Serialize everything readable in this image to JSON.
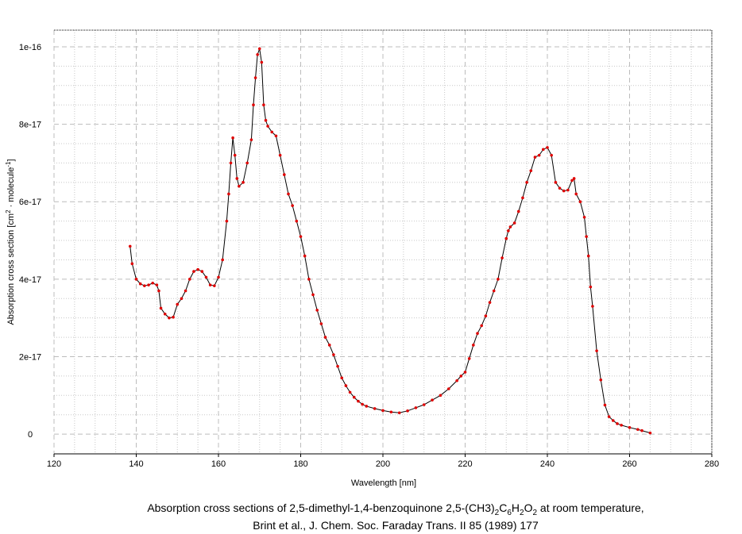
{
  "chart_data": {
    "type": "line",
    "x_label": "Wavelength [nm]",
    "y_label": [
      "Absorption cross section [cm",
      "2",
      " · molecule",
      "-1",
      "]"
    ],
    "caption_line1": [
      "Absorption cross sections of 2,5-dimethyl-1,4-benzoquinone 2,5-(CH3)",
      "2",
      "C",
      "6",
      "H",
      "2",
      "O",
      "2",
      " at room temperature,"
    ],
    "caption_line2": "Brint et al., J. Chem. Soc. Faraday Trans. II 85 (1989) 177",
    "xlim": [
      120,
      280
    ],
    "xticks": [
      120,
      140,
      160,
      180,
      200,
      220,
      240,
      260,
      280
    ],
    "ylim": [
      -5.1e-18,
      1.043e-16
    ],
    "yticks": [
      0,
      2e-17,
      4e-17,
      6e-17,
      8e-17,
      1e-16
    ],
    "grid": true,
    "minor_grid": true,
    "line_color": "#000000",
    "marker_color": "#e00000",
    "x": [
      138.5,
      139,
      140,
      141,
      142,
      143,
      144,
      145,
      145.5,
      146,
      147,
      148,
      149,
      150,
      151,
      152,
      153,
      154,
      155,
      156,
      157,
      158,
      159,
      160,
      161,
      162,
      162.5,
      163,
      163.5,
      164,
      164.5,
      165,
      166,
      167,
      168,
      168.5,
      169,
      169.5,
      170,
      170.5,
      171,
      171.5,
      172,
      173,
      174,
      175,
      176,
      177,
      178,
      179,
      180,
      181,
      182,
      183,
      184,
      185,
      186,
      187,
      188,
      189,
      190,
      191,
      192,
      193,
      194,
      195,
      196,
      198,
      200,
      202,
      204,
      206,
      208,
      210,
      212,
      214,
      216,
      218,
      219,
      220,
      221,
      222,
      223,
      224,
      225,
      226,
      227,
      228,
      229,
      230,
      230.5,
      231,
      232,
      233,
      234,
      235,
      236,
      237,
      238,
      239,
      240,
      241,
      242,
      243,
      244,
      245,
      246,
      246.5,
      247,
      248,
      249,
      249.5,
      250,
      250.5,
      251,
      252,
      253,
      254,
      255,
      256,
      257,
      258,
      260,
      262,
      263,
      265
    ],
    "values": [
      4.85e-17,
      4.4e-17,
      4e-17,
      3.88e-17,
      3.83e-17,
      3.85e-17,
      3.9e-17,
      3.85e-17,
      3.7e-17,
      3.25e-17,
      3.1e-17,
      3e-17,
      3.02e-17,
      3.35e-17,
      3.5e-17,
      3.7e-17,
      4e-17,
      4.2e-17,
      4.25e-17,
      4.2e-17,
      4.05e-17,
      3.85e-17,
      3.83e-17,
      4.05e-17,
      4.5e-17,
      5.5e-17,
      6.2e-17,
      7e-17,
      7.65e-17,
      7.2e-17,
      6.6e-17,
      6.4e-17,
      6.5e-17,
      7e-17,
      7.6e-17,
      8.5e-17,
      9.2e-17,
      9.8e-17,
      9.95e-17,
      9.6e-17,
      8.5e-17,
      8.1e-17,
      7.95e-17,
      7.8e-17,
      7.7e-17,
      7.2e-17,
      6.7e-17,
      6.2e-17,
      5.9e-17,
      5.5e-17,
      5.1e-17,
      4.6e-17,
      4e-17,
      3.6e-17,
      3.2e-17,
      2.85e-17,
      2.5e-17,
      2.3e-17,
      2.05e-17,
      1.75e-17,
      1.45e-17,
      1.25e-17,
      1.08e-17,
      9.5e-18,
      8.5e-18,
      7.7e-18,
      7.2e-18,
      6.6e-18,
      6.1e-18,
      5.7e-18,
      5.5e-18,
      6e-18,
      6.8e-18,
      7.6e-18,
      8.8e-18,
      1e-17,
      1.17e-17,
      1.38e-17,
      1.5e-17,
      1.6e-17,
      1.95e-17,
      2.3e-17,
      2.6e-17,
      2.8e-17,
      3.05e-17,
      3.4e-17,
      3.7e-17,
      4e-17,
      4.55e-17,
      5.05e-17,
      5.25e-17,
      5.35e-17,
      5.45e-17,
      5.75e-17,
      6.1e-17,
      6.5e-17,
      6.8e-17,
      7.15e-17,
      7.2e-17,
      7.35e-17,
      7.4e-17,
      7.2e-17,
      6.5e-17,
      6.35e-17,
      6.28e-17,
      6.3e-17,
      6.55e-17,
      6.6e-17,
      6.2e-17,
      6e-17,
      5.6e-17,
      5.1e-17,
      4.6e-17,
      3.8e-17,
      3.3e-17,
      2.15e-17,
      1.4e-17,
      7.5e-18,
      4.5e-18,
      3.5e-18,
      2.7e-18,
      2.3e-18,
      1.7e-18,
      1.2e-18,
      9e-19,
      3e-19
    ]
  }
}
